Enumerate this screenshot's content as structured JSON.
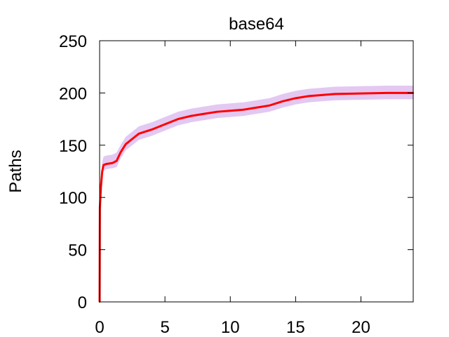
{
  "chart_data": {
    "type": "line",
    "title": "base64",
    "xlabel": "",
    "ylabel": "Paths",
    "xlim": [
      0,
      24
    ],
    "ylim": [
      0,
      250
    ],
    "xticks": [
      0,
      5,
      10,
      15,
      20
    ],
    "yticks": [
      0,
      50,
      100,
      150,
      200,
      250
    ],
    "grid": false,
    "series": [
      {
        "line_color": "#ff0000",
        "band_color": "#e3c8f2",
        "points": [
          {
            "x": 0.0,
            "y": 0,
            "lo": 0,
            "hi": 0
          },
          {
            "x": 0.02,
            "y": 90,
            "lo": 84,
            "hi": 96
          },
          {
            "x": 0.1,
            "y": 110,
            "lo": 104,
            "hi": 116
          },
          {
            "x": 0.2,
            "y": 125,
            "lo": 119,
            "hi": 134
          },
          {
            "x": 0.3,
            "y": 131,
            "lo": 125,
            "hi": 139
          },
          {
            "x": 0.5,
            "y": 132,
            "lo": 127,
            "hi": 140
          },
          {
            "x": 1.0,
            "y": 133,
            "lo": 128,
            "hi": 141
          },
          {
            "x": 1.3,
            "y": 135,
            "lo": 129,
            "hi": 143
          },
          {
            "x": 1.6,
            "y": 143,
            "lo": 137,
            "hi": 150
          },
          {
            "x": 2.0,
            "y": 151,
            "lo": 145,
            "hi": 158
          },
          {
            "x": 2.5,
            "y": 156,
            "lo": 150,
            "hi": 163
          },
          {
            "x": 3.0,
            "y": 161,
            "lo": 155,
            "hi": 168
          },
          {
            "x": 3.5,
            "y": 163,
            "lo": 157,
            "hi": 170
          },
          {
            "x": 4.0,
            "y": 165,
            "lo": 159,
            "hi": 172
          },
          {
            "x": 5.0,
            "y": 170,
            "lo": 164,
            "hi": 177
          },
          {
            "x": 6.0,
            "y": 175,
            "lo": 169,
            "hi": 182
          },
          {
            "x": 7.0,
            "y": 178,
            "lo": 172,
            "hi": 185
          },
          {
            "x": 8.0,
            "y": 180,
            "lo": 174,
            "hi": 187
          },
          {
            "x": 9.0,
            "y": 182,
            "lo": 176,
            "hi": 189
          },
          {
            "x": 10.0,
            "y": 183,
            "lo": 177,
            "hi": 190
          },
          {
            "x": 11.0,
            "y": 184,
            "lo": 178,
            "hi": 191
          },
          {
            "x": 12.0,
            "y": 186,
            "lo": 180,
            "hi": 193
          },
          {
            "x": 13.0,
            "y": 188,
            "lo": 182,
            "hi": 195
          },
          {
            "x": 14.0,
            "y": 192,
            "lo": 186,
            "hi": 199
          },
          {
            "x": 15.0,
            "y": 195,
            "lo": 189,
            "hi": 202
          },
          {
            "x": 16.0,
            "y": 197,
            "lo": 191,
            "hi": 204
          },
          {
            "x": 17.0,
            "y": 198,
            "lo": 192,
            "hi": 205
          },
          {
            "x": 18.0,
            "y": 199,
            "lo": 193,
            "hi": 206
          },
          {
            "x": 20.0,
            "y": 199.5,
            "lo": 193.5,
            "hi": 206.5
          },
          {
            "x": 22.0,
            "y": 200,
            "lo": 194,
            "hi": 207
          },
          {
            "x": 24.0,
            "y": 200,
            "lo": 194,
            "hi": 207
          }
        ]
      }
    ]
  }
}
